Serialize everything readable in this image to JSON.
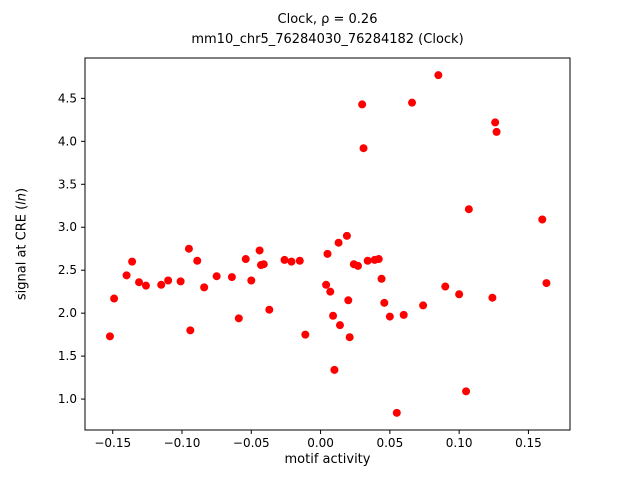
{
  "figure": {
    "title_line1": "Clock, ρ = 0.26",
    "title_line2": "mm10_chr5_76284030_76284182 (Clock)",
    "xlabel": "motif activity",
    "ylabel_prefix": "signal at CRE (",
    "ylabel_italic": "ln",
    "ylabel_suffix": ")"
  },
  "chart_data": {
    "type": "scatter",
    "title": "Clock, ρ = 0.26",
    "subtitle": "mm10_chr5_76284030_76284182 (Clock)",
    "xlabel": "motif activity",
    "ylabel": "signal at CRE (ln)",
    "marker_color": "#ff0000",
    "marker_radius": 4,
    "grid": false,
    "legend": "none",
    "xlim": [
      -0.17,
      0.18
    ],
    "ylim": [
      0.64,
      4.97
    ],
    "x_ticks": {
      "values": [
        -0.15,
        -0.1,
        -0.05,
        0.0,
        0.05,
        0.1,
        0.15
      ],
      "labels": [
        "−0.15",
        "−0.10",
        "−0.05",
        "0.00",
        "0.05",
        "0.10",
        "0.15"
      ]
    },
    "y_ticks": {
      "values": [
        1.0,
        1.5,
        2.0,
        2.5,
        3.0,
        3.5,
        4.0,
        4.5
      ],
      "labels": [
        "1.0",
        "1.5",
        "2.0",
        "2.5",
        "3.0",
        "3.5",
        "4.0",
        "4.5"
      ]
    },
    "points": [
      [
        -0.152,
        1.73
      ],
      [
        -0.149,
        2.17
      ],
      [
        -0.14,
        2.44
      ],
      [
        -0.136,
        2.6
      ],
      [
        -0.131,
        2.36
      ],
      [
        -0.126,
        2.32
      ],
      [
        -0.115,
        2.33
      ],
      [
        -0.11,
        2.38
      ],
      [
        -0.101,
        2.37
      ],
      [
        -0.095,
        2.75
      ],
      [
        -0.094,
        1.8
      ],
      [
        -0.089,
        2.61
      ],
      [
        -0.084,
        2.3
      ],
      [
        -0.075,
        2.43
      ],
      [
        -0.064,
        2.42
      ],
      [
        -0.059,
        1.94
      ],
      [
        -0.054,
        2.63
      ],
      [
        -0.05,
        2.38
      ],
      [
        -0.044,
        2.73
      ],
      [
        -0.043,
        2.56
      ],
      [
        -0.041,
        2.57
      ],
      [
        -0.037,
        2.04
      ],
      [
        -0.026,
        2.62
      ],
      [
        -0.021,
        2.6
      ],
      [
        -0.015,
        2.61
      ],
      [
        -0.011,
        1.75
      ],
      [
        0.004,
        2.33
      ],
      [
        0.005,
        2.69
      ],
      [
        0.007,
        2.25
      ],
      [
        0.009,
        1.97
      ],
      [
        0.01,
        1.34
      ],
      [
        0.013,
        2.82
      ],
      [
        0.014,
        1.86
      ],
      [
        0.019,
        2.9
      ],
      [
        0.02,
        2.15
      ],
      [
        0.021,
        1.72
      ],
      [
        0.024,
        2.57
      ],
      [
        0.027,
        2.55
      ],
      [
        0.03,
        4.43
      ],
      [
        0.031,
        3.92
      ],
      [
        0.034,
        2.61
      ],
      [
        0.039,
        2.62
      ],
      [
        0.042,
        2.63
      ],
      [
        0.044,
        2.4
      ],
      [
        0.046,
        2.12
      ],
      [
        0.05,
        1.96
      ],
      [
        0.055,
        0.84
      ],
      [
        0.06,
        1.98
      ],
      [
        0.066,
        4.45
      ],
      [
        0.074,
        2.09
      ],
      [
        0.085,
        4.77
      ],
      [
        0.09,
        2.31
      ],
      [
        0.1,
        2.22
      ],
      [
        0.105,
        1.09
      ],
      [
        0.107,
        3.21
      ],
      [
        0.124,
        2.18
      ],
      [
        0.126,
        4.22
      ],
      [
        0.127,
        4.11
      ],
      [
        0.16,
        3.09
      ],
      [
        0.163,
        2.35
      ]
    ]
  }
}
